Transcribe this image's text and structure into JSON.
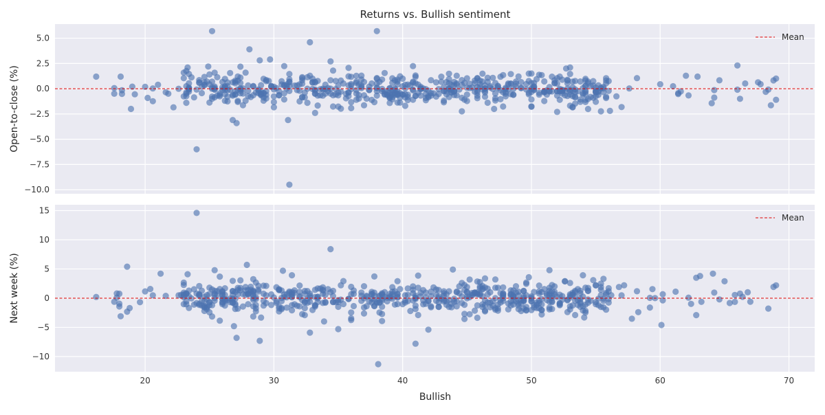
{
  "chart_data": [
    {
      "type": "scatter",
      "title": "Returns vs. Bullish sentiment",
      "xlabel": "",
      "ylabel": "Open-to-close (%)",
      "xlim": [
        13,
        72
      ],
      "ylim": [
        -10.4,
        6.4
      ],
      "yticks": [
        5.0,
        2.5,
        0.0,
        -2.5,
        -5.0,
        -7.5,
        -10.0
      ],
      "ytick_labels": [
        "5.0",
        "2.5",
        "0.0",
        "−2.5",
        "−5.0",
        "−7.5",
        "−10.0"
      ],
      "xticks": [
        20,
        30,
        40,
        50,
        60,
        70
      ],
      "mean_line": {
        "y": 0.0,
        "label": "Mean",
        "color": "#dd0000"
      },
      "legend": "top-right",
      "grid": true,
      "marker_color": "#4c72b0",
      "outliers": [
        [
          25.2,
          5.7
        ],
        [
          38.0,
          5.7
        ],
        [
          32.8,
          4.6
        ],
        [
          28.1,
          3.9
        ],
        [
          29.7,
          2.9
        ],
        [
          28.9,
          2.8
        ],
        [
          34.4,
          2.7
        ],
        [
          66.0,
          2.3
        ],
        [
          23.3,
          2.1
        ],
        [
          24.9,
          2.2
        ],
        [
          52.7,
          2.0
        ],
        [
          50.0,
          1.5
        ],
        [
          16.2,
          1.2
        ],
        [
          69.0,
          1.0
        ],
        [
          62.9,
          1.2
        ],
        [
          18.1,
          1.2
        ],
        [
          24.0,
          -6.0
        ],
        [
          31.2,
          -9.5
        ],
        [
          27.1,
          -3.4
        ],
        [
          26.8,
          -3.1
        ],
        [
          31.1,
          -3.1
        ],
        [
          33.2,
          -2.4
        ],
        [
          52.0,
          -2.3
        ],
        [
          56.1,
          -2.2
        ],
        [
          18.9,
          -2.0
        ],
        [
          47.1,
          -2.0
        ]
      ],
      "bulk": {
        "count": 620,
        "x_range": [
          17.5,
          69
        ],
        "spread": 0.8,
        "seed": 11
      }
    },
    {
      "type": "scatter",
      "title": "",
      "xlabel": "Bullish",
      "ylabel": "Next week (%)",
      "xlim": [
        13,
        72
      ],
      "ylim": [
        -12.6,
        16.0
      ],
      "yticks": [
        15,
        10,
        5,
        0,
        -5,
        -10
      ],
      "ytick_labels": [
        "15",
        "10",
        "5",
        "0",
        "−5",
        "−10"
      ],
      "xticks": [
        20,
        30,
        40,
        50,
        60,
        70
      ],
      "xtick_labels": [
        "20",
        "30",
        "40",
        "50",
        "60",
        "70"
      ],
      "mean_line": {
        "y": 0.0,
        "label": "Mean",
        "color": "#dd0000"
      },
      "legend": "top-right",
      "grid": true,
      "marker_color": "#4c72b0",
      "outliers": [
        [
          24.0,
          14.6
        ],
        [
          34.4,
          8.4
        ],
        [
          18.6,
          5.4
        ],
        [
          27.9,
          5.7
        ],
        [
          25.4,
          4.8
        ],
        [
          30.7,
          4.7
        ],
        [
          51.4,
          4.8
        ],
        [
          43.9,
          4.9
        ],
        [
          64.1,
          4.2
        ],
        [
          21.2,
          4.2
        ],
        [
          23.3,
          4.1
        ],
        [
          63.1,
          3.8
        ],
        [
          69.0,
          2.2
        ],
        [
          16.2,
          0.2
        ],
        [
          38.1,
          -11.3
        ],
        [
          41.0,
          -7.8
        ],
        [
          28.9,
          -7.3
        ],
        [
          27.1,
          -6.8
        ],
        [
          32.8,
          -5.9
        ],
        [
          42.0,
          -5.4
        ],
        [
          35.0,
          -5.3
        ],
        [
          60.1,
          -4.6
        ],
        [
          26.9,
          -4.8
        ],
        [
          33.9,
          -4.0
        ],
        [
          18.1,
          -3.1
        ],
        [
          62.8,
          -2.9
        ],
        [
          58.3,
          -2.4
        ],
        [
          54.1,
          -3.3
        ]
      ],
      "bulk": {
        "count": 640,
        "x_range": [
          17.5,
          69
        ],
        "spread": 1.4,
        "seed": 23
      }
    }
  ]
}
